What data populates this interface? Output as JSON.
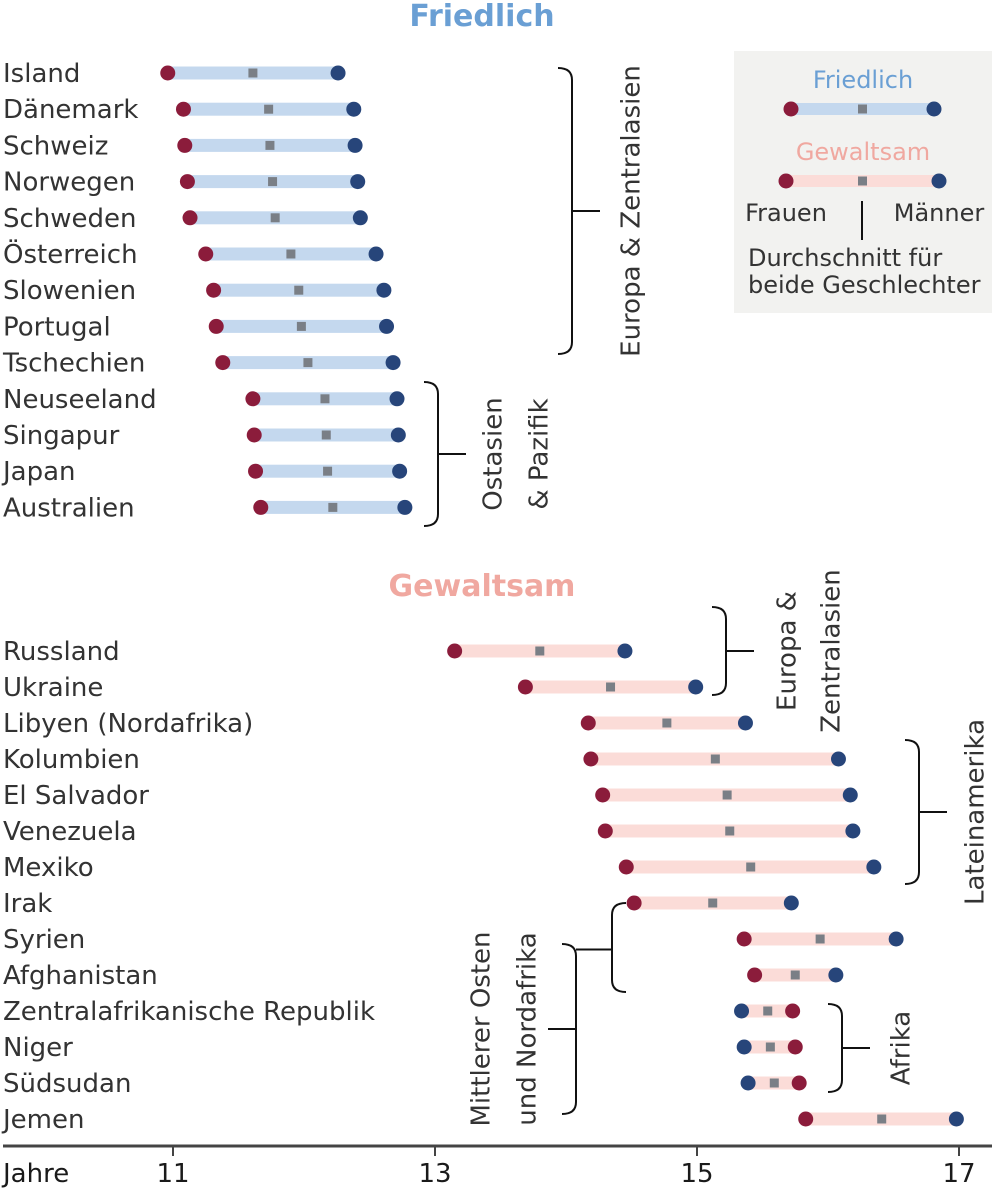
{
  "colors": {
    "peaceful": "#6a9fd4",
    "violent": "#f0a8a0",
    "bar_peaceful": "#c4d8ee",
    "bar_violent": "#fbdcd8",
    "women": "#8b1c3b",
    "men": "#27457a",
    "avg": "#7a7f86",
    "text": "#333333",
    "axis": "#444444",
    "legend_bg": "#f2f2f0"
  },
  "chart_data": {
    "type": "dumbbell",
    "x_axis_label": "Jahre",
    "xlim": [
      11,
      17
    ],
    "ticks": [
      11,
      13,
      15,
      17
    ],
    "legend": {
      "peaceful_label": "Friedlich",
      "violent_label": "Gewaltsam",
      "women_label": "Frauen",
      "men_label": "Männer",
      "avg_label_line1": "Durchschnitt für",
      "avg_label_line2": "beide Geschlechter"
    },
    "sections": [
      {
        "title": "Friedlich",
        "kind": "peaceful",
        "rows": [
          {
            "country": "Island",
            "women": 10.96,
            "men": 12.26,
            "avg": 11.61
          },
          {
            "country": "Dänemark",
            "women": 11.08,
            "men": 12.38,
            "avg": 11.73
          },
          {
            "country": "Schweiz",
            "women": 11.09,
            "men": 12.39,
            "avg": 11.74
          },
          {
            "country": "Norwegen",
            "women": 11.11,
            "men": 12.41,
            "avg": 11.76
          },
          {
            "country": "Schweden",
            "women": 11.13,
            "men": 12.43,
            "avg": 11.78
          },
          {
            "country": "Österreich",
            "women": 11.25,
            "men": 12.55,
            "avg": 11.9
          },
          {
            "country": "Slowenien",
            "women": 11.31,
            "men": 12.61,
            "avg": 11.96
          },
          {
            "country": "Portugal",
            "women": 11.33,
            "men": 12.63,
            "avg": 11.98
          },
          {
            "country": "Tschechien",
            "women": 11.38,
            "men": 12.68,
            "avg": 12.03
          },
          {
            "country": "Neuseeland",
            "women": 11.61,
            "men": 12.71,
            "avg": 12.16
          },
          {
            "country": "Singapur",
            "women": 11.62,
            "men": 12.72,
            "avg": 12.17
          },
          {
            "country": "Japan",
            "women": 11.63,
            "men": 12.73,
            "avg": 12.18
          },
          {
            "country": "Australien",
            "women": 11.67,
            "men": 12.77,
            "avg": 12.22
          }
        ],
        "groups": [
          {
            "label": "Europa & Zentralasien",
            "from": "Island",
            "to": "Tschechien"
          },
          {
            "label": "Ostasien & Pazifik",
            "label_lines": [
              "Ostasien",
              "& Pazifik"
            ],
            "from": "Neuseeland",
            "to": "Australien"
          }
        ]
      },
      {
        "title": "Gewaltsam",
        "kind": "violent",
        "rows": [
          {
            "country": "Russland",
            "women": 13.15,
            "men": 14.45,
            "avg": 13.8
          },
          {
            "country": "Ukraine",
            "women": 13.69,
            "men": 14.99,
            "avg": 14.34
          },
          {
            "country": "Libyen (Nordafrika)",
            "women": 14.17,
            "men": 15.37,
            "avg": 14.77
          },
          {
            "country": "Kolumbien",
            "women": 14.19,
            "men": 16.08,
            "avg": 15.14
          },
          {
            "country": "El Salvador",
            "women": 14.28,
            "men": 16.17,
            "avg": 15.23
          },
          {
            "country": "Venezuela",
            "women": 14.3,
            "men": 16.19,
            "avg": 15.25
          },
          {
            "country": "Mexiko",
            "women": 14.46,
            "men": 16.35,
            "avg": 15.41
          },
          {
            "country": "Irak",
            "women": 14.52,
            "men": 15.72,
            "avg": 15.12
          },
          {
            "country": "Syrien",
            "women": 15.36,
            "men": 16.52,
            "avg": 15.94
          },
          {
            "country": "Afghanistan",
            "women": 15.44,
            "men": 16.06,
            "avg": 15.75
          },
          {
            "country": "Zentralafrikanische Republik",
            "women": 15.73,
            "men": 15.34,
            "avg": 15.54
          },
          {
            "country": "Niger",
            "women": 15.75,
            "men": 15.36,
            "avg": 15.56
          },
          {
            "country": "Südsudan",
            "women": 15.78,
            "men": 15.39,
            "avg": 15.59
          },
          {
            "country": "Jemen",
            "women": 15.83,
            "men": 16.98,
            "avg": 16.41
          }
        ],
        "groups": [
          {
            "label": "Europa & Zentralasien",
            "label_lines": [
              "Europa &",
              "Zentralasien"
            ],
            "from": "Russland",
            "to": "Ukraine"
          },
          {
            "label": "Lateinamerika",
            "from": "Kolumbien",
            "to": "Mexiko"
          },
          {
            "label": "Mittlerer Osten und Nordafrika",
            "label_lines": [
              "Mittlerer Osten",
              "und Nordafrika"
            ],
            "from": "Irak",
            "to": "Jemen"
          },
          {
            "label": "Afrika",
            "from": "Zentralafrikanische Republik",
            "to": "Südsudan"
          }
        ]
      }
    ]
  }
}
